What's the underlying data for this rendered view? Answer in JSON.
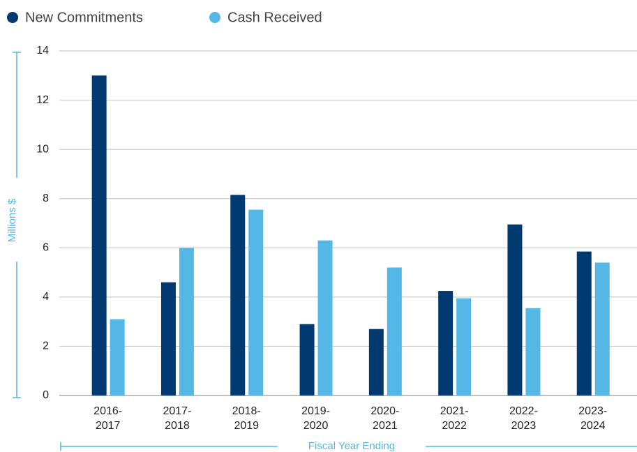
{
  "chart_data": {
    "type": "bar",
    "categories": [
      "2016-2017",
      "2017-2018",
      "2018-2019",
      "2019-2020",
      "2020-2021",
      "2021-2022",
      "2022-2023",
      "2023-2024"
    ],
    "series": [
      {
        "name": "New Commitments",
        "color": "#003a70",
        "values": [
          13.0,
          4.6,
          8.15,
          2.9,
          2.7,
          4.25,
          6.95,
          5.85
        ]
      },
      {
        "name": "Cash Received",
        "color": "#55b7e6",
        "values": [
          3.1,
          6.0,
          7.55,
          6.3,
          5.2,
          3.95,
          3.55,
          5.4
        ]
      }
    ],
    "ylim": [
      0,
      14
    ],
    "yticks": [
      0,
      2,
      4,
      6,
      8,
      10,
      12,
      14
    ],
    "grid": true,
    "y_label": "Millions $",
    "x_label": "Fiscal Year Ending",
    "legend": "top-left"
  }
}
